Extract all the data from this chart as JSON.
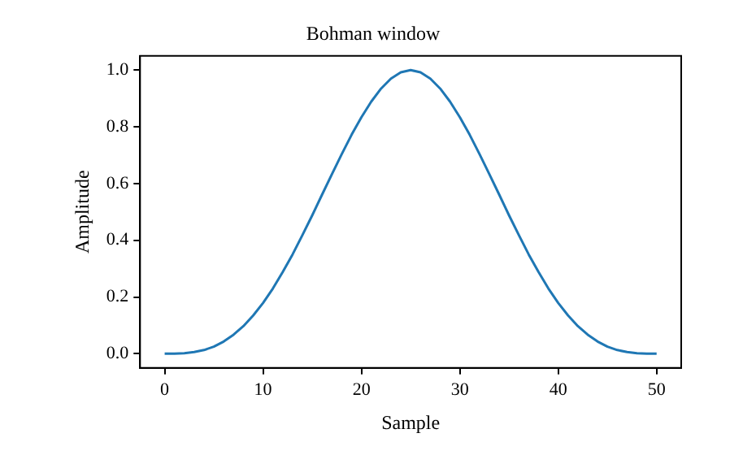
{
  "chart_data": {
    "type": "line",
    "title": "Bohman window",
    "xlabel": "Sample",
    "ylabel": "Amplitude",
    "x": [
      0,
      1,
      2,
      3,
      4,
      5,
      6,
      7,
      8,
      9,
      10,
      11,
      12,
      13,
      14,
      15,
      16,
      17,
      18,
      19,
      20,
      21,
      22,
      23,
      24,
      25,
      26,
      27,
      28,
      29,
      30,
      31,
      32,
      33,
      34,
      35,
      36,
      37,
      38,
      39,
      40,
      41,
      42,
      43,
      44,
      45,
      46,
      47,
      48,
      49,
      50
    ],
    "series": [
      {
        "color": "#1f77b4",
        "values": [
          0,
          0,
          0.002,
          0.006,
          0.013,
          0.025,
          0.043,
          0.067,
          0.097,
          0.135,
          0.179,
          0.23,
          0.288,
          0.35,
          0.418,
          0.488,
          0.561,
          0.633,
          0.704,
          0.772,
          0.834,
          0.889,
          0.935,
          0.97,
          0.992,
          1.0,
          0.992,
          0.97,
          0.935,
          0.889,
          0.834,
          0.772,
          0.704,
          0.633,
          0.561,
          0.488,
          0.418,
          0.35,
          0.288,
          0.23,
          0.179,
          0.135,
          0.097,
          0.067,
          0.043,
          0.025,
          0.013,
          0.006,
          0.002,
          0,
          0
        ]
      }
    ],
    "xlim": [
      -2.5,
      52.5
    ],
    "xticks": [
      0,
      10,
      20,
      30,
      40,
      50
    ],
    "ylim": [
      -0.05,
      1.05
    ],
    "yticks": [
      {
        "value": 0,
        "label": "0.0"
      },
      {
        "value": 0.2,
        "label": "0.2"
      },
      {
        "value": 0.4,
        "label": "0.4"
      },
      {
        "value": 0.6,
        "label": "0.6"
      },
      {
        "value": 0.8,
        "label": "0.8"
      },
      {
        "value": 1,
        "label": "1.0"
      }
    ],
    "grid": false,
    "legend": false,
    "marker": "none",
    "line_style": "solid"
  }
}
